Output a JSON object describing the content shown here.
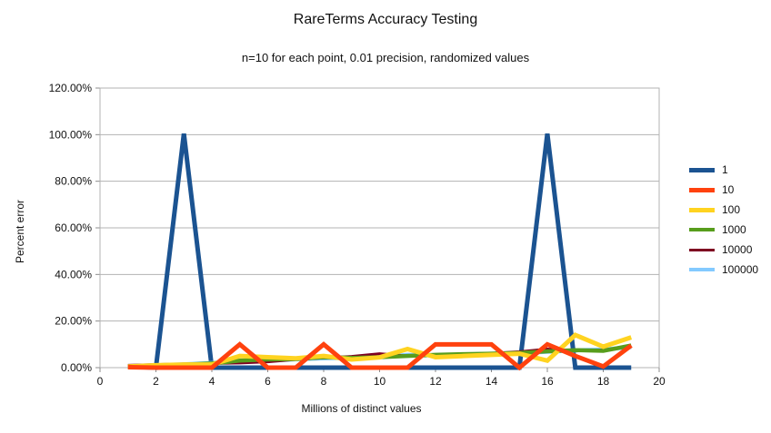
{
  "chart": {
    "title": "RareTerms Accuracy Testing",
    "subtitle": "n=10 for each point, 0.01 precision, randomized values",
    "x_axis_title": "Millions of distinct values",
    "y_axis_title": "Percent error"
  },
  "chart_data": {
    "type": "line",
    "title": "RareTerms Accuracy Testing",
    "subtitle": "n=10 for each point, 0.01 precision, randomized values",
    "xlabel": "Millions of distinct values",
    "ylabel": "Percent error",
    "xlim": [
      0,
      20
    ],
    "ylim_percent": [
      0,
      120
    ],
    "x_tick_labels": [
      "0",
      "2",
      "4",
      "6",
      "8",
      "10",
      "12",
      "14",
      "16",
      "18",
      "20"
    ],
    "y_tick_labels": [
      "0.00%",
      "20.00%",
      "40.00%",
      "60.00%",
      "80.00%",
      "100.00%",
      "120.00%"
    ],
    "grid": "horizontal",
    "legend_position": "right",
    "x": [
      1,
      2,
      3,
      4,
      5,
      6,
      7,
      8,
      9,
      10,
      11,
      12,
      13,
      14,
      15,
      16,
      17,
      18,
      19
    ],
    "series": [
      {
        "name": "1",
        "color": "#1B5391",
        "values_percent": [
          0.5,
          0,
          100.4,
          0,
          0,
          0,
          0,
          0,
          0,
          0,
          0,
          0,
          0,
          0,
          0,
          100.4,
          0,
          0,
          0
        ]
      },
      {
        "name": "10",
        "color": "#FF420E",
        "values_percent": [
          0.2,
          0,
          0,
          0,
          10,
          0,
          0,
          10,
          0,
          0,
          0,
          10,
          10,
          10,
          0,
          10,
          5,
          0.5,
          9.5
        ]
      },
      {
        "name": "100",
        "color": "#FFD320",
        "values_percent": [
          0.5,
          1,
          1.3,
          1.3,
          5,
          4.5,
          4,
          5,
          3.5,
          4.4,
          8,
          4.5,
          5,
          5.5,
          6,
          3,
          14,
          9,
          13
        ]
      },
      {
        "name": "1000",
        "color": "#579D1C",
        "values_percent": [
          0.3,
          0.8,
          1.3,
          1.8,
          3,
          3.5,
          3.7,
          4.5,
          4.2,
          4.5,
          5,
          5.5,
          5.8,
          6,
          6.3,
          7,
          7.5,
          7.2,
          9.5
        ]
      },
      {
        "name": "10000",
        "color": "#7E0021",
        "values_percent": [
          1,
          1.3,
          1.6,
          1.8,
          2,
          2.5,
          3.5,
          4.2,
          4.8,
          6,
          5,
          5.2,
          5.6,
          6.2,
          6.8,
          8,
          7.2,
          7.6,
          9.2
        ]
      },
      {
        "name": "100000",
        "color": "#83CAFF",
        "values_percent": [
          0.6,
          1,
          1.4,
          2,
          2.6,
          3,
          3.6,
          4,
          4.2,
          4.6,
          5.5,
          5.2,
          5.6,
          6,
          6.2,
          6.8,
          7.4,
          7.8,
          8.8
        ]
      }
    ],
    "draw_order": [
      "1",
      "100000",
      "10000",
      "1000",
      "100",
      "10"
    ],
    "annotations": []
  },
  "colors": {
    "background": "#FFFFFF",
    "gridline": "#B3B3B3",
    "plot_border": "#B3B3B3",
    "tick": "#8C8C8C",
    "text": "#111111"
  }
}
